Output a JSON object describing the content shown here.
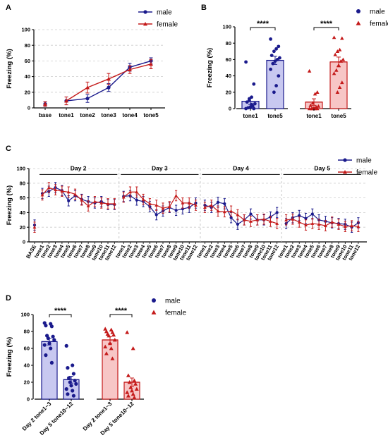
{
  "colors": {
    "male": "#1a1a8c",
    "female": "#c41a1a",
    "male_fill": "#c8c8f0",
    "female_fill": "#f7c6c6",
    "grid": "#cccccc"
  },
  "panel_labels": {
    "a": "A",
    "b": "B",
    "c": "C",
    "d": "D"
  },
  "chart_data": [
    {
      "panel": "A",
      "type": "line",
      "ylabel": "Freezing  (%)",
      "ylim": [
        0,
        100
      ],
      "yticks": [
        0,
        20,
        40,
        60,
        80,
        100
      ],
      "categories": [
        "base",
        "tone1",
        "tone2",
        "tone3",
        "tone4",
        "tone5"
      ],
      "series": [
        {
          "name": "male",
          "marker": "circle",
          "values": [
            5,
            9,
            12,
            26,
            52,
            60
          ],
          "err": [
            3,
            5,
            5,
            5,
            5,
            4
          ]
        },
        {
          "name": "female",
          "marker": "triangle",
          "values": [
            5,
            9,
            26,
            37,
            49,
            56
          ],
          "err": [
            3,
            5,
            7,
            7,
            5,
            6
          ]
        }
      ],
      "legend": "top-right",
      "grid": true
    },
    {
      "panel": "B",
      "type": "bar",
      "ylabel": "Freezing  (%)",
      "ylim": [
        0,
        100
      ],
      "yticks": [
        0,
        20,
        40,
        60,
        80,
        100
      ],
      "groups": [
        {
          "series": "male",
          "bars": [
            {
              "label": "tone1",
              "value": 9,
              "err": 4,
              "points": [
                57,
                30,
                14,
                10,
                8,
                6,
                3,
                2,
                1,
                0,
                0,
                5,
                12
              ]
            },
            {
              "label": "tone5",
              "value": 59,
              "err": 5,
              "points": [
                85,
                76,
                73,
                70,
                65,
                62,
                60,
                58,
                55,
                48,
                40,
                28,
                20
              ]
            }
          ]
        },
        {
          "series": "female",
          "bars": [
            {
              "label": "tone1",
              "value": 8,
              "err": 4,
              "points": [
                46,
                20,
                18,
                7,
                4,
                3,
                2,
                1,
                0,
                0,
                0,
                0,
                0
              ]
            },
            {
              "label": "tone5",
              "value": 57,
              "err": 6,
              "points": [
                87,
                86,
                72,
                70,
                66,
                60,
                58,
                53,
                47,
                43,
                32,
                26,
                20
              ]
            }
          ]
        }
      ],
      "significance": [
        "****",
        "****"
      ],
      "legend": "top-right"
    },
    {
      "panel": "C",
      "type": "line",
      "ylabel": "Freezing  (%)",
      "ylim": [
        0,
        100
      ],
      "yticks": [
        0,
        20,
        40,
        60,
        80,
        100
      ],
      "days": [
        "Day 2",
        "Day 3",
        "Day 4",
        "Day 5"
      ],
      "categories": [
        "BASE",
        "tone1",
        "tone2",
        "tone3",
        "tone4",
        "tone5",
        "tone6",
        "tone7",
        "tone8",
        "tone9",
        "tone10",
        "tone11",
        "tone12",
        "tone1",
        "tone2",
        "tone3",
        "tone4",
        "tone5",
        "tone6",
        "tone7",
        "tone8",
        "tone9",
        "tone10",
        "tone11",
        "tone12",
        "tone1",
        "tone2",
        "tone3",
        "tone4",
        "tone5",
        "tone6",
        "tone7",
        "tone8",
        "tone9",
        "tone10",
        "tone11",
        "tone12",
        "tone1",
        "tone2",
        "tone3",
        "tone4",
        "tone5",
        "tone6",
        "tone7",
        "tone8",
        "tone9",
        "tone10",
        "tone11",
        "tone12"
      ],
      "series": [
        {
          "name": "male",
          "marker": "circle",
          "values": [
            23,
            66,
            69,
            74,
            70,
            56,
            63,
            58,
            55,
            53,
            55,
            51,
            51,
            62,
            63,
            57,
            55,
            48,
            37,
            42,
            47,
            43,
            45,
            47,
            53,
            50,
            47,
            54,
            52,
            33,
            24,
            30,
            38,
            30,
            30,
            34,
            40,
            25,
            33,
            36,
            32,
            38,
            30,
            28,
            26,
            25,
            24,
            20,
            26
          ]
        },
        {
          "name": "female",
          "marker": "triangle",
          "values": [
            20,
            64,
            74,
            71,
            69,
            68,
            65,
            57,
            49,
            55,
            53,
            52,
            52,
            61,
            68,
            68,
            58,
            52,
            50,
            46,
            48,
            63,
            53,
            53,
            50,
            47,
            50,
            42,
            41,
            42,
            37,
            30,
            28,
            30,
            31,
            28,
            25,
            30,
            31,
            27,
            23,
            25,
            24,
            22,
            27,
            24,
            21,
            22,
            21
          ]
        }
      ],
      "legend": "top-right",
      "grid": true
    },
    {
      "panel": "D",
      "type": "bar",
      "ylabel": "Freezing  (%)",
      "ylim": [
        0,
        100
      ],
      "yticks": [
        0,
        20,
        40,
        60,
        80,
        100
      ],
      "groups": [
        {
          "series": "male",
          "bars": [
            {
              "label": "Day 2 tone1~3",
              "value": 68,
              "err": 4,
              "points": [
                90,
                89,
                87,
                86,
                75,
                74,
                72,
                70,
                66,
                64,
                60,
                52,
                43
              ]
            },
            {
              "label": "Day 5 tone10~12",
              "value": 23,
              "err": 4,
              "points": [
                63,
                40,
                37,
                30,
                25,
                22,
                20,
                18,
                16,
                12,
                10,
                6,
                4
              ]
            }
          ]
        },
        {
          "series": "female",
          "bars": [
            {
              "label": "Day 2 tone1~3",
              "value": 70,
              "err": 4,
              "points": [
                83,
                82,
                80,
                79,
                77,
                76,
                75,
                70,
                66,
                62,
                60,
                54,
                48
              ]
            },
            {
              "label": "Day 5 tone10~12",
              "value": 20,
              "err": 5,
              "points": [
                79,
                60,
                28,
                22,
                20,
                18,
                14,
                12,
                10,
                8,
                6,
                4,
                2
              ]
            }
          ]
        }
      ],
      "significance": [
        "****",
        "****"
      ],
      "legend": "top-right"
    }
  ]
}
